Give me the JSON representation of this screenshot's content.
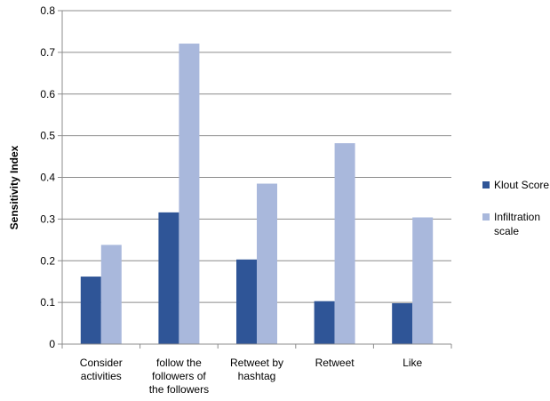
{
  "chart_data": {
    "type": "bar",
    "title": "",
    "xlabel": "",
    "ylabel": "Sensitivity Index",
    "ylim": [
      0,
      0.8
    ],
    "yticks": [
      0,
      0.1,
      0.2,
      0.3,
      0.4,
      0.5,
      0.6,
      0.7,
      0.8
    ],
    "ytick_labels": [
      "0",
      "0.1",
      "0.2",
      "0.3",
      "0.4",
      "0.5",
      "0.6",
      "0.7",
      "0.8"
    ],
    "grid": true,
    "legend_position": "right",
    "categories": [
      [
        "Consider",
        "activities"
      ],
      [
        "follow the",
        "followers of",
        "the followers"
      ],
      [
        "Retweet by",
        "hashtag"
      ],
      [
        "Retweet"
      ],
      [
        "Like"
      ]
    ],
    "series": [
      {
        "name": "Klout Score",
        "legend_lines": [
          "Klout Score"
        ],
        "color": "#2f5597",
        "values": [
          0.162,
          0.316,
          0.203,
          0.103,
          0.098
        ]
      },
      {
        "name": "Infiltration scale",
        "legend_lines": [
          "Infiltration",
          "scale"
        ],
        "color": "#a9b8dc",
        "values": [
          0.238,
          0.721,
          0.385,
          0.482,
          0.304
        ]
      }
    ]
  }
}
